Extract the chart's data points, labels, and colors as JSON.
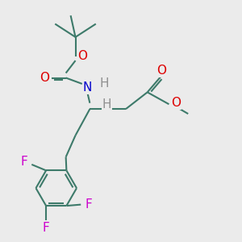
{
  "background_color": "#ebebeb",
  "bond_color": "#3d7a6a",
  "bond_width": 1.5,
  "atom_colors": {
    "O": "#dd0000",
    "N": "#0000cc",
    "F": "#cc00cc",
    "H": "#909090",
    "C": "#3d7a6a"
  },
  "font_size_atom": 11,
  "font_size_label": 9,
  "figsize": [
    3.0,
    3.0
  ],
  "dpi": 100,
  "xlim": [
    0,
    10
  ],
  "ylim": [
    0,
    10
  ]
}
